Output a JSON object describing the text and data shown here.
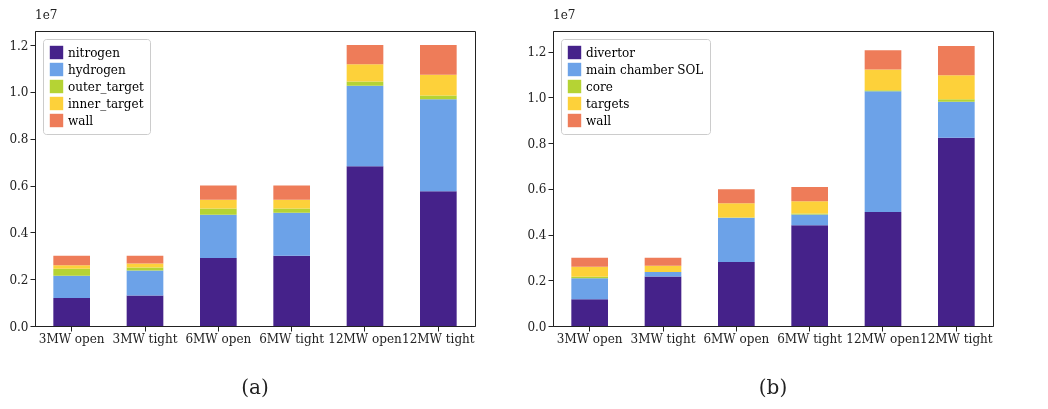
{
  "chart_data": [
    {
      "type": "bar",
      "stacked": true,
      "categories": [
        "3MW open",
        "3MW tight",
        "6MW open",
        "6MW tight",
        "12MW open",
        "12MW tight"
      ],
      "series": [
        {
          "name": "nitrogen",
          "color": "#45228a",
          "values": [
            0.12,
            0.13,
            0.29,
            0.3,
            0.682,
            0.576
          ]
        },
        {
          "name": "hydrogen",
          "color": "#6ca2e8",
          "values": [
            0.095,
            0.107,
            0.185,
            0.184,
            0.344,
            0.393
          ]
        },
        {
          "name": "outer_target",
          "color": "#b5d334",
          "values": [
            0.03,
            0.013,
            0.027,
            0.018,
            0.018,
            0.016
          ]
        },
        {
          "name": "inner_target",
          "color": "#fdd13a",
          "values": [
            0.015,
            0.017,
            0.037,
            0.037,
            0.074,
            0.088
          ]
        },
        {
          "name": "wall",
          "color": "#ee7c59",
          "values": [
            0.04,
            0.033,
            0.061,
            0.061,
            0.082,
            0.127
          ]
        }
      ],
      "ylim": [
        0,
        1.26
      ],
      "yticks": [
        {
          "value": 0,
          "label": "0.0"
        },
        {
          "value": 0.2,
          "label": "0.2"
        },
        {
          "value": 0.4,
          "label": "0.4"
        },
        {
          "value": 0.6,
          "label": "0.6"
        },
        {
          "value": 0.8,
          "label": "0.8"
        },
        {
          "value": 1,
          "label": "1.0"
        },
        {
          "value": 1.2,
          "label": "1.2"
        }
      ],
      "legend": "top left",
      "grid": false,
      "annotations": [
        "1e7",
        "(a)"
      ]
    },
    {
      "type": "bar",
      "stacked": true,
      "categories": [
        "3MW open",
        "3MW tight",
        "6MW open",
        "6MW tight",
        "12MW open",
        "12MW tight"
      ],
      "series": [
        {
          "name": "divertor",
          "color": "#45228a",
          "values": [
            0.117,
            0.216,
            0.28,
            0.441,
            0.498,
            0.823
          ]
        },
        {
          "name": "main chamber SOL",
          "color": "#6ca2e8",
          "values": [
            0.092,
            0.02,
            0.193,
            0.047,
            0.529,
            0.158
          ]
        },
        {
          "name": "core",
          "color": "#b5d334",
          "values": [
            0.006,
            null,
            0.002,
            0.004,
            0.004,
            0.011
          ]
        },
        {
          "name": "targets",
          "color": "#fdd13a",
          "values": [
            0.044,
            0.028,
            0.062,
            0.054,
            0.091,
            0.105
          ]
        },
        {
          "name": "wall",
          "color": "#ee7c59",
          "values": [
            0.039,
            0.034,
            0.061,
            0.062,
            0.084,
            0.127
          ]
        }
      ],
      "ylim": [
        0,
        1.29
      ],
      "yticks": [
        {
          "value": 0,
          "label": "0.0"
        },
        {
          "value": 0.2,
          "label": "0.2"
        },
        {
          "value": 0.4,
          "label": "0.4"
        },
        {
          "value": 0.6,
          "label": "0.6"
        },
        {
          "value": 0.8,
          "label": "0.8"
        },
        {
          "value": 1,
          "label": "1.0"
        },
        {
          "value": 1.2,
          "label": "1.2"
        }
      ],
      "legend": "top left",
      "grid": false,
      "annotations": [
        "1e7",
        "(b)"
      ]
    }
  ]
}
